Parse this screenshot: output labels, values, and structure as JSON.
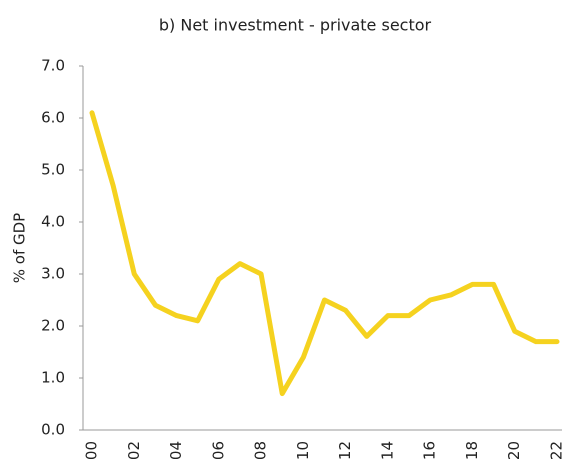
{
  "chart_data": {
    "type": "line",
    "title": "b) Net investment  - private sector",
    "y_label": "% of GDP",
    "categories": [
      "00",
      null,
      "02",
      null,
      "04",
      null,
      "06",
      null,
      "08",
      null,
      "10",
      null,
      "12",
      null,
      "14",
      null,
      "16",
      null,
      "18",
      null,
      "20",
      null,
      "22"
    ],
    "series": [
      {
        "name": "Net investment - private sector",
        "color": "#f5d21f",
        "values": [
          6.1,
          4.7,
          3.0,
          2.4,
          2.2,
          2.1,
          2.9,
          3.2,
          3.0,
          0.7,
          1.4,
          2.5,
          2.3,
          1.8,
          2.2,
          2.2,
          2.5,
          2.6,
          2.8,
          2.8,
          1.9,
          1.7,
          1.7
        ]
      }
    ],
    "ylim": [
      0,
      7
    ],
    "yticks": [
      {
        "value": 0,
        "label": "0.0"
      },
      {
        "value": 1,
        "label": "1.0"
      },
      {
        "value": 2,
        "label": "2.0"
      },
      {
        "value": 3,
        "label": "3.0"
      },
      {
        "value": 4,
        "label": "4.0"
      },
      {
        "value": 5,
        "label": "5.0"
      },
      {
        "value": 6,
        "label": "6.0"
      },
      {
        "value": 7,
        "label": "7.0"
      }
    ],
    "grid": false
  }
}
